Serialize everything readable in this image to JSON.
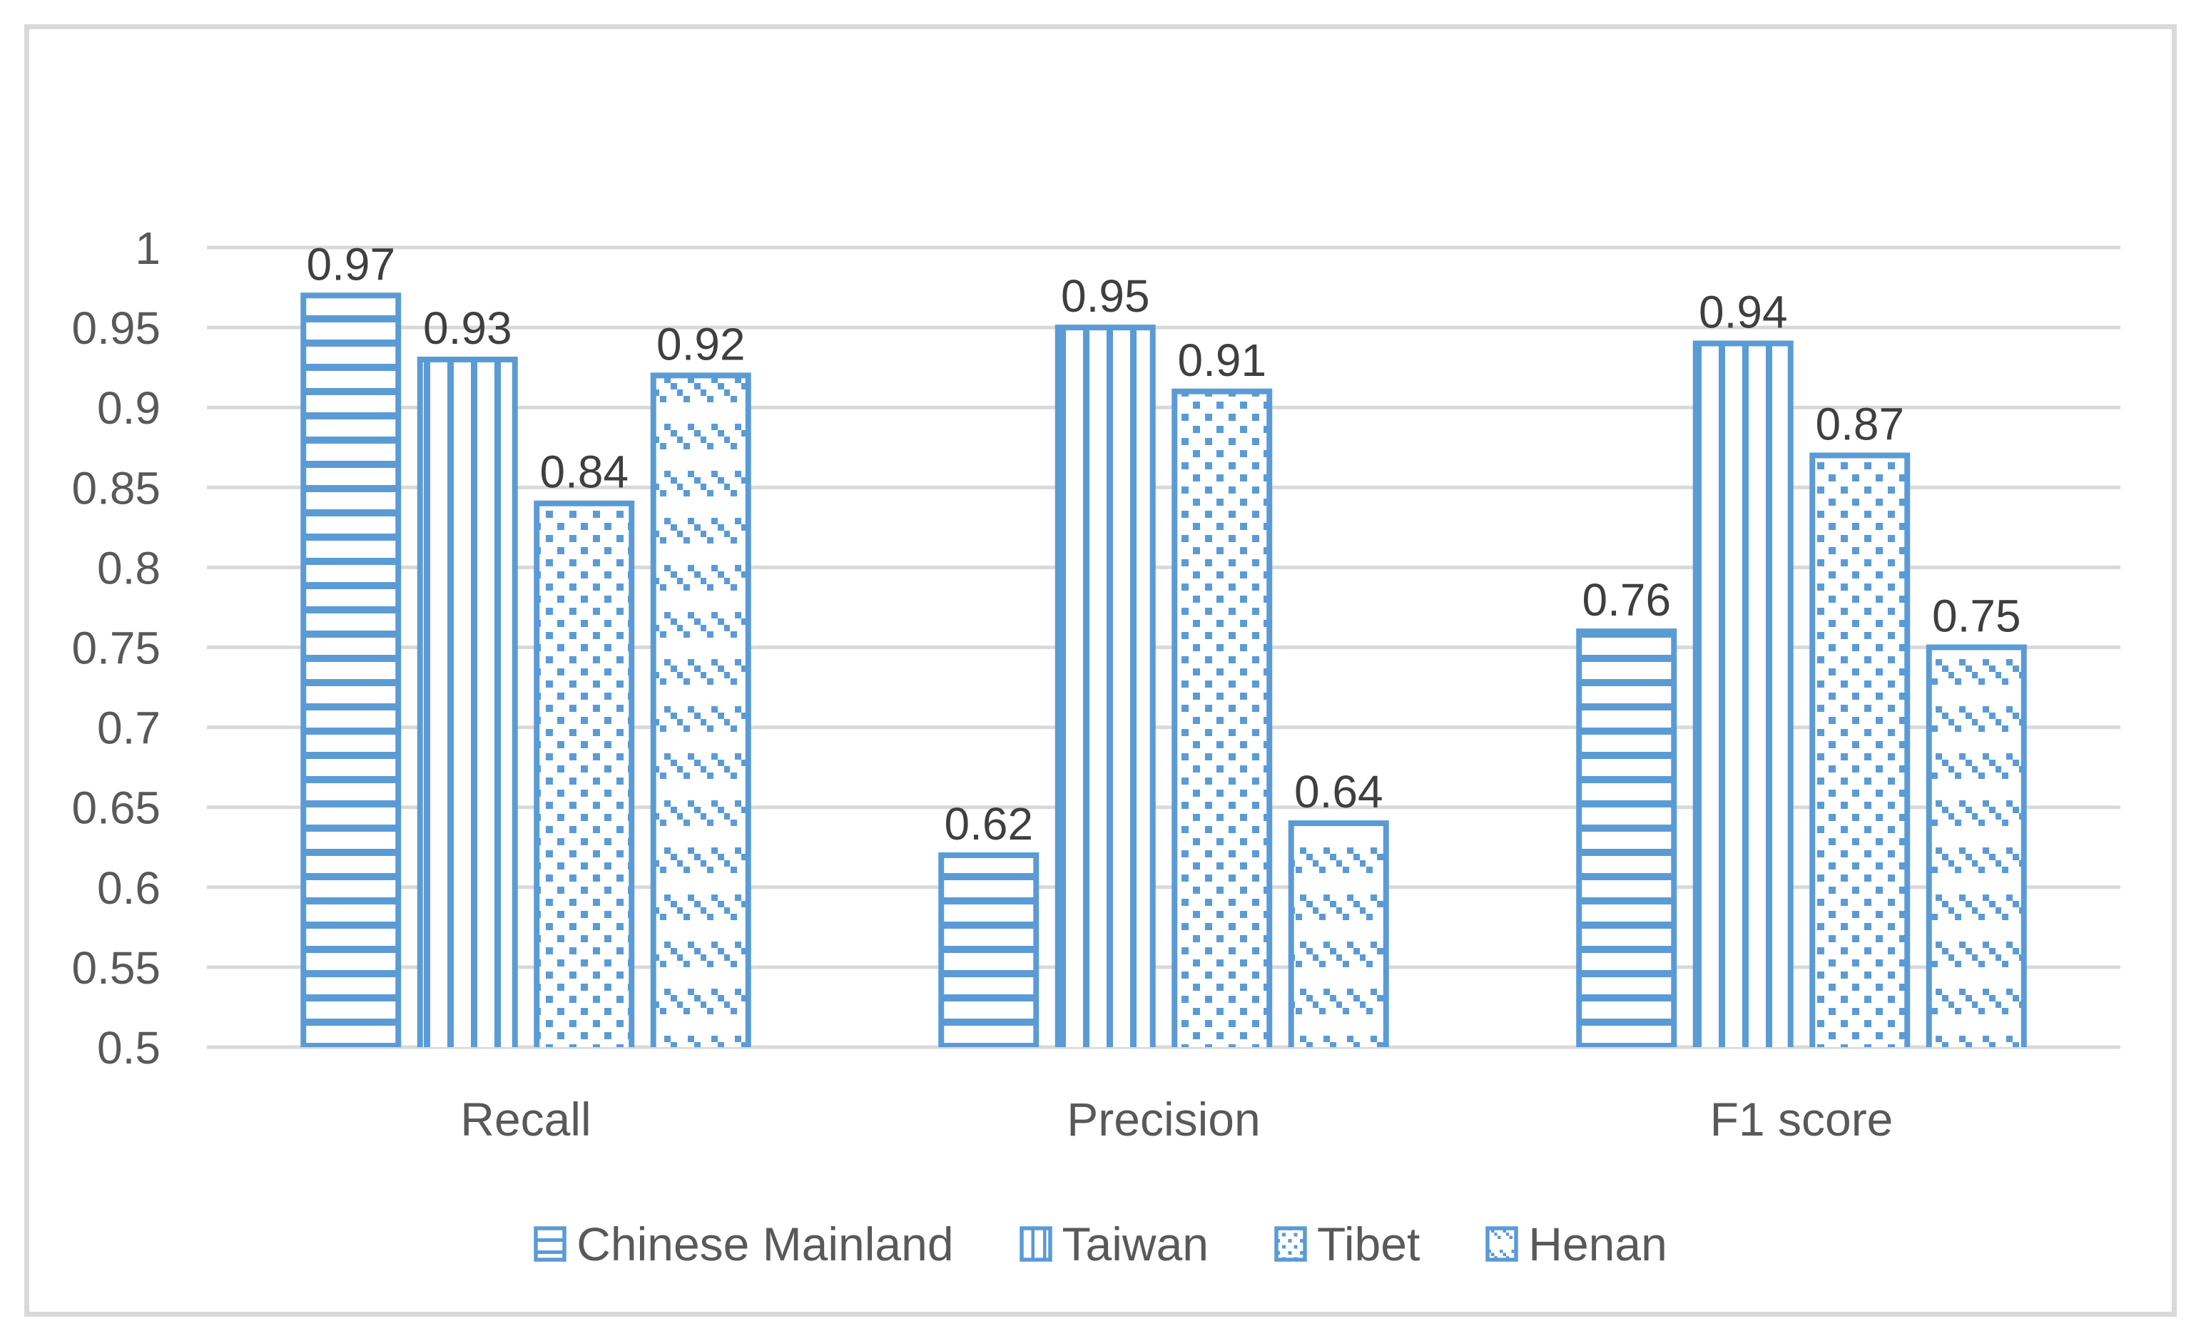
{
  "chart_data": {
    "type": "bar",
    "title": "",
    "categories": [
      "Recall",
      "Precision",
      "F1 score"
    ],
    "series": [
      {
        "name": "Chinese Mainland",
        "pattern": "horizontal-stripes",
        "values": [
          0.97,
          0.62,
          0.76
        ],
        "labels": [
          "0.97",
          "0.62",
          "0.76"
        ]
      },
      {
        "name": "Taiwan",
        "pattern": "vertical-stripes",
        "values": [
          0.93,
          0.95,
          0.94
        ],
        "labels": [
          "0.93",
          "0.95",
          "0.94"
        ]
      },
      {
        "name": "Tibet",
        "pattern": "dots",
        "values": [
          0.84,
          0.91,
          0.87
        ],
        "labels": [
          "0.84",
          "0.91",
          "0.87"
        ]
      },
      {
        "name": "Henan",
        "pattern": "diagonal-dashes",
        "values": [
          0.92,
          0.64,
          0.75
        ],
        "labels": [
          "0.92",
          "0.64",
          "0.75"
        ]
      }
    ],
    "ylim": [
      0.5,
      1.0
    ],
    "ytick_step": 0.05,
    "ytick_labels": [
      "0.5",
      "0.55",
      "0.6",
      "0.65",
      "0.7",
      "0.75",
      "0.8",
      "0.85",
      "0.9",
      "0.95",
      "1"
    ],
    "grid": true,
    "legend_position": "bottom",
    "colors": {
      "bar_accent": "#5B9BD5",
      "gridline": "#D9D9D9",
      "frame_border": "#D9D9D9",
      "value_label": "#3F3F3F",
      "axis_label": "#595959",
      "background": "#FFFFFF"
    }
  }
}
